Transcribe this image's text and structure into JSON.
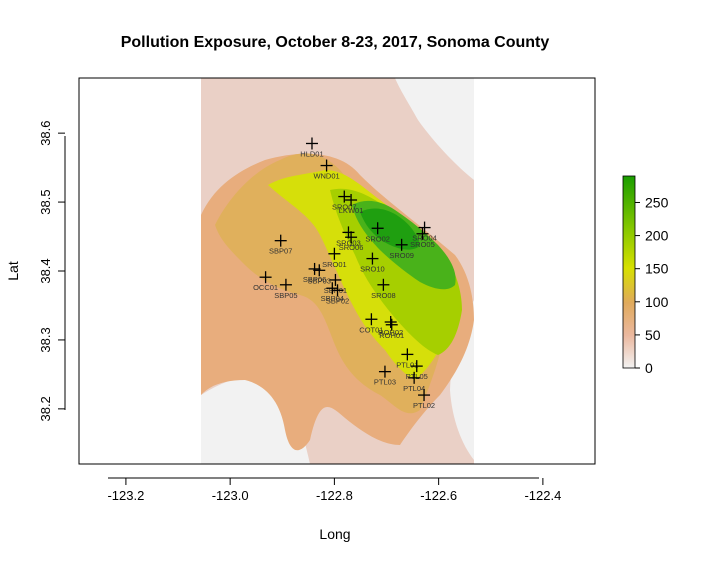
{
  "chart_data": {
    "type": "heatmap",
    "title": "Pollution Exposure, October 8-23, 2017, Sonoma County",
    "xlabel": "Long",
    "ylabel": "Lat",
    "xlim": [
      -123.29,
      -122.3
    ],
    "ylim": [
      38.12,
      38.68
    ],
    "x_ticks": [
      -123.2,
      -123.0,
      -122.8,
      -122.6,
      -122.4
    ],
    "x_tick_labels": [
      "-123.2",
      "-123.0",
      "-122.8",
      "-122.6",
      "-122.4"
    ],
    "y_ticks": [
      38.2,
      38.3,
      38.4,
      38.5,
      38.6
    ],
    "y_tick_labels": [
      "38.2",
      "38.3",
      "38.4",
      "38.5",
      "38.6"
    ],
    "raster_extent": {
      "lon": [
        -123.03,
        -122.52
      ],
      "lat": [
        38.12,
        38.68
      ]
    },
    "colorbar": {
      "range": [
        0,
        290
      ],
      "ticks": [
        0,
        50,
        100,
        150,
        200,
        250
      ],
      "tick_labels": [
        "0",
        "50",
        "100",
        "150",
        "200",
        "250"
      ],
      "colors": [
        "#f2f2f2",
        "#ebb89f",
        "#e0aa5c",
        "#d7e000",
        "#88c800",
        "#1a9d00"
      ]
    },
    "sites": [
      {
        "label": "HLD01",
        "lon": -122.843,
        "lat": 38.585
      },
      {
        "label": "WND01",
        "lon": -122.815,
        "lat": 38.553
      },
      {
        "label": "SRO07",
        "lon": -122.781,
        "lat": 38.508
      },
      {
        "label": "LKW01",
        "lon": -122.768,
        "lat": 38.503
      },
      {
        "label": "SRO03",
        "lon": -122.773,
        "lat": 38.456
      },
      {
        "label": "SRO06",
        "lon": -122.768,
        "lat": 38.449
      },
      {
        "label": "SRO02",
        "lon": -122.717,
        "lat": 38.462
      },
      {
        "label": "SRO04",
        "lon": -122.627,
        "lat": 38.463
      },
      {
        "label": "SRO05",
        "lon": -122.631,
        "lat": 38.454
      },
      {
        "label": "SRO09",
        "lon": -122.671,
        "lat": 38.438
      },
      {
        "label": "SBP07",
        "lon": -122.903,
        "lat": 38.444
      },
      {
        "label": "SRO01",
        "lon": -122.8,
        "lat": 38.425
      },
      {
        "label": "SRO10",
        "lon": -122.727,
        "lat": 38.418
      },
      {
        "label": "SBP06",
        "lon": -122.838,
        "lat": 38.403
      },
      {
        "label": "SBP03",
        "lon": -122.829,
        "lat": 38.401
      },
      {
        "label": "SBP01",
        "lon": -122.798,
        "lat": 38.387
      },
      {
        "label": "OCC01",
        "lon": -122.932,
        "lat": 38.391
      },
      {
        "label": "SBP05",
        "lon": -122.893,
        "lat": 38.38
      },
      {
        "label": "SBP04",
        "lon": -122.804,
        "lat": 38.375
      },
      {
        "label": "SBP02",
        "lon": -122.794,
        "lat": 38.372
      },
      {
        "label": "SRO08",
        "lon": -122.706,
        "lat": 38.38
      },
      {
        "label": "COT01",
        "lon": -122.729,
        "lat": 38.33
      },
      {
        "label": "ROH02",
        "lon": -122.692,
        "lat": 38.326
      },
      {
        "label": "ROH01",
        "lon": -122.69,
        "lat": 38.322
      },
      {
        "label": "PTL01",
        "lon": -122.66,
        "lat": 38.279
      },
      {
        "label": "PTL03",
        "lon": -122.703,
        "lat": 38.254
      },
      {
        "label": "PTL05",
        "lon": -122.642,
        "lat": 38.262
      },
      {
        "label": "PTL04",
        "lon": -122.647,
        "lat": 38.245
      },
      {
        "label": "PTL02",
        "lon": -122.628,
        "lat": 38.22
      }
    ],
    "grid": false,
    "legend_position": "right"
  }
}
